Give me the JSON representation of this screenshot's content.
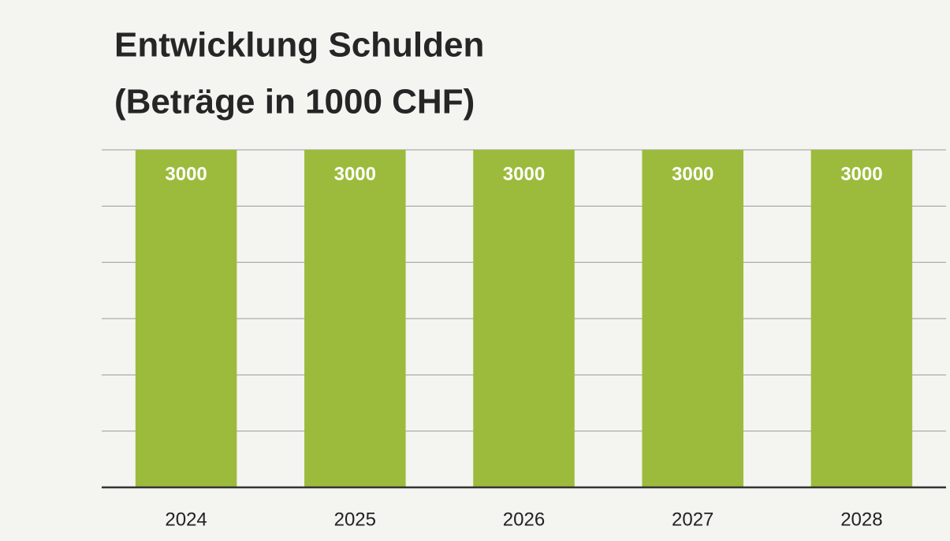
{
  "chart_data": {
    "type": "bar",
    "title": "Entwicklung Schulden",
    "subtitle": "(Beträge in 1000 CHF)",
    "categories": [
      "2024",
      "2025",
      "2026",
      "2027",
      "2028"
    ],
    "values": [
      3000,
      3000,
      3000,
      3000,
      3000
    ],
    "color": "#9cbb3c",
    "ylim": [
      0,
      3000
    ],
    "yticks": [
      0,
      500,
      1000,
      1500,
      2000,
      2500,
      3000
    ],
    "grid": true
  }
}
